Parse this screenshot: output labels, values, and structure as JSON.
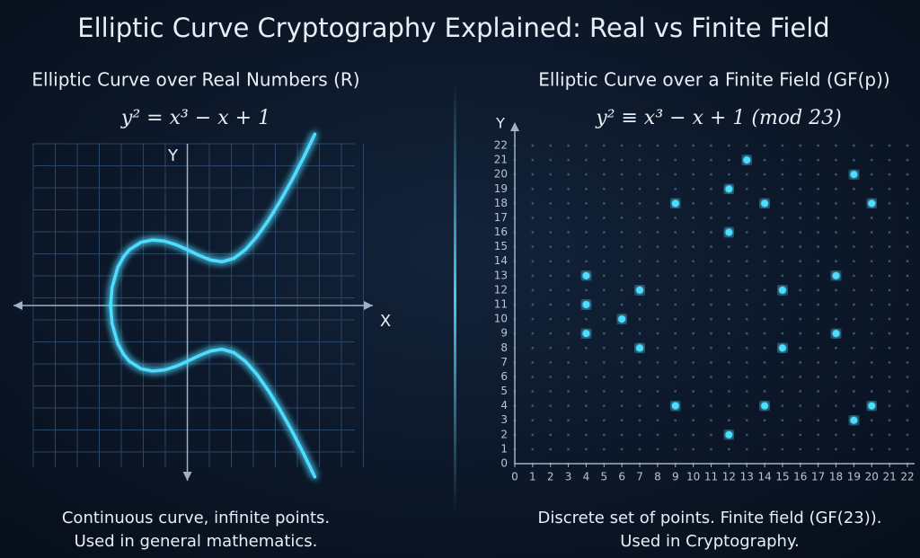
{
  "title": "Elliptic Curve Cryptography Explained: Real vs Finite Field",
  "chart_data": [
    {
      "type": "line",
      "title": "Elliptic Curve over Real Numbers (R)",
      "equation": "y² = x³ − x + 1",
      "xlabel": "X",
      "ylabel": "Y",
      "caption": [
        "Continuous curve, infinite points.",
        "Used in general mathematics."
      ],
      "color": "#4fdcff",
      "xlim": [
        -3,
        3.2
      ],
      "ylim": [
        -2.9,
        2.9
      ],
      "x": [
        -1.3247,
        -1.3,
        -1.2,
        -1.1,
        -1,
        -0.8,
        -0.6,
        -0.4,
        -0.2,
        0,
        0.2,
        0.4,
        0.6,
        0.8,
        1,
        1.2,
        1.4,
        1.6,
        1.8,
        2,
        2.2
      ],
      "series": [
        {
          "values": [
            0,
            0.321,
            0.687,
            0.877,
            1,
            1.135,
            1.176,
            1.156,
            1.092,
            1,
            0.899,
            0.815,
            0.785,
            0.844,
            1,
            1.236,
            1.531,
            1.87,
            2.243,
            2.646,
            3.074
          ]
        },
        {
          "values": [
            0,
            -0.321,
            -0.687,
            -0.877,
            -1,
            -1.135,
            -1.176,
            -1.156,
            -1.092,
            -1,
            -0.899,
            -0.815,
            -0.785,
            -0.844,
            -1,
            -1.236,
            -1.531,
            -1.87,
            -2.243,
            -2.646,
            -3.074
          ]
        }
      ]
    },
    {
      "type": "scatter",
      "title": "Elliptic Curve over a Finite Field (GF(p))",
      "equation": "y² ≡ x³ − x + 1 (mod 23)",
      "ylabel": "Y",
      "caption": [
        "Discrete set of points. Finite field (GF(23)).",
        "Used in Cryptography."
      ],
      "color": "#4fdcff",
      "xlim": [
        0,
        22
      ],
      "ylim": [
        0,
        22
      ],
      "xticks": [
        0,
        1,
        2,
        3,
        4,
        5,
        6,
        7,
        8,
        9,
        10,
        11,
        12,
        13,
        14,
        15,
        16,
        17,
        18,
        19,
        20,
        21,
        22
      ],
      "yticks": [
        0,
        1,
        2,
        3,
        4,
        5,
        6,
        7,
        8,
        9,
        10,
        11,
        12,
        13,
        14,
        15,
        16,
        17,
        18,
        19,
        20,
        21,
        22
      ],
      "x": [
        13,
        19,
        12,
        9,
        14,
        20,
        12,
        4,
        18,
        7,
        15,
        4,
        6,
        4,
        18,
        7,
        15,
        9,
        14,
        20,
        19,
        12
      ],
      "values": [
        21,
        20,
        19,
        18,
        18,
        18,
        16,
        13,
        13,
        12,
        12,
        11,
        10,
        9,
        9,
        8,
        8,
        4,
        4,
        4,
        3,
        2
      ]
    }
  ]
}
